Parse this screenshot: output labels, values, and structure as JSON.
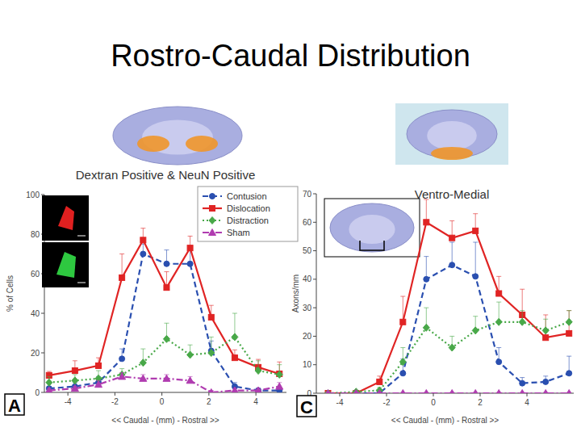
{
  "slide": {
    "title": "Rostro-Caudal Distribution"
  },
  "chart_data": [
    {
      "type": "line",
      "title": "Dextran Positive & NeuN Positive",
      "x_label": "<< Caudal - (mm) - Rostral >>",
      "y_label": "% of Cells",
      "annotations": [
        "A"
      ],
      "legend": "upper right",
      "grid": false,
      "x": [
        -4.8,
        -3.7,
        -2.7,
        -1.7,
        -0.8,
        0.2,
        1.2,
        2.1,
        3.1,
        4.1,
        5.0
      ],
      "xlim": [
        -5,
        5.3
      ],
      "xticks": [
        -4,
        -2,
        0,
        2,
        4
      ],
      "ylim": [
        0,
        100
      ],
      "yticks": [
        0,
        20,
        40,
        60,
        80,
        100
      ],
      "series": [
        {
          "name": "Contusion",
          "color": "#2a4fb0",
          "marker": "circle",
          "line_style": "dashed",
          "values": [
            2,
            3,
            5,
            17,
            70,
            65,
            65,
            21,
            3,
            1,
            1
          ],
          "errors": [
            1,
            2,
            3,
            5,
            5,
            7,
            8,
            5,
            2,
            1,
            1
          ]
        },
        {
          "name": "Dislocation",
          "color": "#e02424",
          "marker": "square",
          "line_style": "solid",
          "values": [
            8.6,
            11,
            13.5,
            58,
            77,
            53,
            73,
            38,
            17.5,
            12.7,
            9.4
          ],
          "errors": [
            2,
            5,
            4,
            12,
            6,
            8,
            6,
            6,
            4,
            4,
            6
          ]
        },
        {
          "name": "Distraction",
          "color": "#48a848",
          "marker": "diamond",
          "line_style": "dotted",
          "values": [
            5,
            6,
            7,
            9,
            15,
            27,
            19,
            20,
            28,
            11,
            9
          ],
          "errors": [
            3,
            3,
            4,
            3,
            7,
            8,
            5,
            8,
            12,
            5,
            5
          ]
        },
        {
          "name": "Sham",
          "color": "#b03cb0",
          "marker": "triangle",
          "line_style": "dashdot",
          "values": [
            1,
            2,
            4,
            8,
            7,
            7,
            6,
            0,
            1,
            1,
            3
          ],
          "errors": [
            1,
            1,
            2,
            2,
            2,
            2,
            2,
            1,
            1,
            1,
            2
          ]
        }
      ]
    },
    {
      "type": "line",
      "title": "Ventro-Medial",
      "x_label": "<< Caudal - (mm) - Rostral >>",
      "y_label": "Axons/mm",
      "annotations": [
        "C"
      ],
      "grid": false,
      "x": [
        -4.5,
        -3.3,
        -2.3,
        -1.3,
        -0.3,
        0.8,
        1.8,
        2.8,
        3.8,
        4.8,
        5.8
      ],
      "xlim": [
        -5,
        6
      ],
      "xticks": [
        -4,
        -2,
        0,
        2,
        4
      ],
      "ylim": [
        0,
        70
      ],
      "yticks": [
        0,
        10,
        20,
        30,
        40,
        50,
        60,
        70
      ],
      "series": [
        {
          "color": "#2a4fb0",
          "marker": "circle",
          "line_style": "dashed",
          "values": [
            0,
            0,
            0,
            7,
            40,
            45,
            41,
            11,
            3.5,
            4,
            7
          ],
          "errors": [
            0,
            0,
            1,
            5,
            8,
            8,
            12,
            5,
            2,
            2,
            6
          ]
        },
        {
          "color": "#e02424",
          "marker": "square",
          "line_style": "solid",
          "values": [
            0,
            0,
            4,
            25,
            60,
            54.5,
            57,
            35,
            27.5,
            19.5,
            21
          ],
          "errors": [
            0,
            1,
            2,
            9,
            8,
            6,
            6,
            6,
            9,
            8,
            8
          ]
        },
        {
          "color": "#48a848",
          "marker": "diamond",
          "line_style": "dotted",
          "values": [
            0,
            0.5,
            1,
            11,
            23,
            16,
            22,
            25,
            25,
            22,
            25
          ],
          "errors": [
            0,
            0,
            1,
            5,
            7,
            4,
            5,
            7,
            4,
            4,
            4
          ]
        },
        {
          "color": "#b03cb0",
          "marker": "triangle",
          "line_style": "dashdot",
          "values": [
            0,
            0,
            0,
            0,
            0,
            0,
            0,
            0,
            0,
            0,
            0
          ],
          "errors": [
            0.3,
            0.3,
            0.3,
            0.3,
            0.3,
            0.3,
            0.3,
            0.3,
            0.3,
            0.3,
            0.3
          ]
        }
      ]
    }
  ]
}
